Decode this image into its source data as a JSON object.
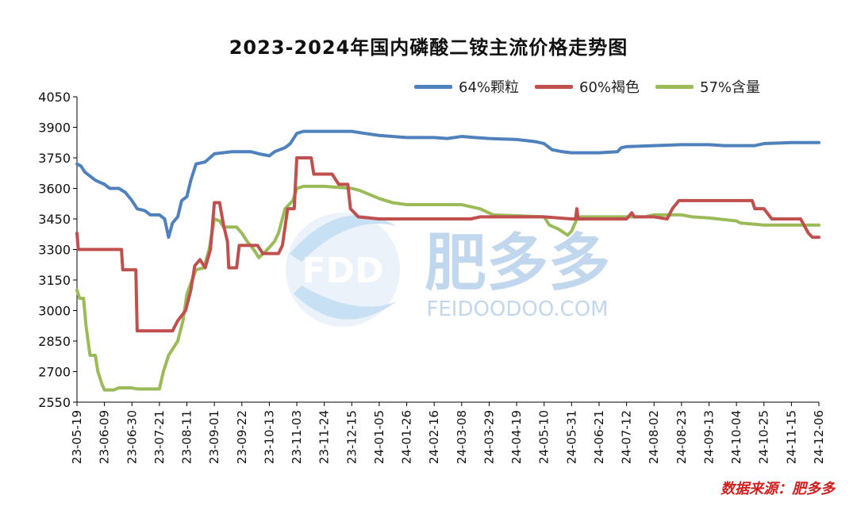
{
  "colors": {
    "series_64": "#4F81BD",
    "series_60": "#C0504D",
    "series_57": "#9BBB59",
    "source": "#d21e1e",
    "watermark": "#7fb2df"
  },
  "watermark": {
    "logo_text": "FDD",
    "brand": "肥多多",
    "url": "FEIDOODOO.COM"
  },
  "source_note": "数据来源：肥多多",
  "chart_data": {
    "type": "line",
    "title": "2023-2024年国内磷酸二铵主流价格走势图",
    "xlabel": "",
    "ylabel": "",
    "ylim": [
      2550,
      4050
    ],
    "yticks": [
      2550,
      2700,
      2850,
      3000,
      3150,
      3300,
      3450,
      3600,
      3750,
      3900,
      4050
    ],
    "x_start": "2023-05-19",
    "x_end": "2024-12-06",
    "x_tick_labels": [
      "23-05-19",
      "23-06-09",
      "23-06-30",
      "23-07-21",
      "23-08-11",
      "23-09-01",
      "23-09-22",
      "23-10-13",
      "23-11-03",
      "23-11-24",
      "23-12-15",
      "24-01-05",
      "24-01-26",
      "24-02-16",
      "24-03-08",
      "24-03-29",
      "24-04-19",
      "24-05-10",
      "24-05-31",
      "24-06-21",
      "24-07-12",
      "24-08-02",
      "24-08-23",
      "24-09-13",
      "24-10-04",
      "24-10-25",
      "24-11-15",
      "24-12-06"
    ],
    "legend_position": "top-right",
    "grid": false,
    "series": [
      {
        "name": "64%颗粒",
        "color": "#4F81BD",
        "points": [
          [
            "2023-05-19",
            3720
          ],
          [
            "2023-05-22",
            3710
          ],
          [
            "2023-05-25",
            3680
          ],
          [
            "2023-05-29",
            3660
          ],
          [
            "2023-06-02",
            3640
          ],
          [
            "2023-06-09",
            3620
          ],
          [
            "2023-06-13",
            3600
          ],
          [
            "2023-06-20",
            3600
          ],
          [
            "2023-06-25",
            3580
          ],
          [
            "2023-06-30",
            3540
          ],
          [
            "2023-07-04",
            3500
          ],
          [
            "2023-07-10",
            3490
          ],
          [
            "2023-07-14",
            3470
          ],
          [
            "2023-07-21",
            3470
          ],
          [
            "2023-07-25",
            3450
          ],
          [
            "2023-07-28",
            3360
          ],
          [
            "2023-07-31",
            3430
          ],
          [
            "2023-08-04",
            3460
          ],
          [
            "2023-08-07",
            3540
          ],
          [
            "2023-08-11",
            3560
          ],
          [
            "2023-08-14",
            3640
          ],
          [
            "2023-08-18",
            3720
          ],
          [
            "2023-08-25",
            3730
          ],
          [
            "2023-09-01",
            3770
          ],
          [
            "2023-09-14",
            3780
          ],
          [
            "2023-09-22",
            3780
          ],
          [
            "2023-09-29",
            3780
          ],
          [
            "2023-10-05",
            3770
          ],
          [
            "2023-10-13",
            3760
          ],
          [
            "2023-10-17",
            3780
          ],
          [
            "2023-10-25",
            3800
          ],
          [
            "2023-10-29",
            3820
          ],
          [
            "2023-11-03",
            3870
          ],
          [
            "2023-11-08",
            3880
          ],
          [
            "2023-11-24",
            3880
          ],
          [
            "2023-12-15",
            3880
          ],
          [
            "2023-12-25",
            3870
          ],
          [
            "2024-01-05",
            3860
          ],
          [
            "2024-01-15",
            3855
          ],
          [
            "2024-01-26",
            3850
          ],
          [
            "2024-02-16",
            3850
          ],
          [
            "2024-02-26",
            3845
          ],
          [
            "2024-03-08",
            3855
          ],
          [
            "2024-03-18",
            3850
          ],
          [
            "2024-03-29",
            3845
          ],
          [
            "2024-04-19",
            3840
          ],
          [
            "2024-05-03",
            3830
          ],
          [
            "2024-05-10",
            3820
          ],
          [
            "2024-05-16",
            3790
          ],
          [
            "2024-05-24",
            3780
          ],
          [
            "2024-05-31",
            3775
          ],
          [
            "2024-06-14",
            3775
          ],
          [
            "2024-06-21",
            3775
          ],
          [
            "2024-07-05",
            3780
          ],
          [
            "2024-07-08",
            3800
          ],
          [
            "2024-07-12",
            3805
          ],
          [
            "2024-08-02",
            3810
          ],
          [
            "2024-08-23",
            3815
          ],
          [
            "2024-09-13",
            3815
          ],
          [
            "2024-09-25",
            3810
          ],
          [
            "2024-10-04",
            3810
          ],
          [
            "2024-10-18",
            3810
          ],
          [
            "2024-10-25",
            3820
          ],
          [
            "2024-11-15",
            3825
          ],
          [
            "2024-11-25",
            3825
          ],
          [
            "2024-12-06",
            3825
          ]
        ]
      },
      {
        "name": "60%褐色",
        "color": "#C0504D",
        "points": [
          [
            "2023-05-19",
            3380
          ],
          [
            "2023-05-20",
            3300
          ],
          [
            "2023-06-09",
            3300
          ],
          [
            "2023-06-22",
            3300
          ],
          [
            "2023-06-23",
            3200
          ],
          [
            "2023-07-03",
            3200
          ],
          [
            "2023-07-04",
            2900
          ],
          [
            "2023-07-21",
            2900
          ],
          [
            "2023-07-31",
            2900
          ],
          [
            "2023-08-04",
            2950
          ],
          [
            "2023-08-10",
            3000
          ],
          [
            "2023-08-14",
            3100
          ],
          [
            "2023-08-17",
            3220
          ],
          [
            "2023-08-21",
            3250
          ],
          [
            "2023-08-25",
            3210
          ],
          [
            "2023-08-29",
            3300
          ],
          [
            "2023-09-01",
            3530
          ],
          [
            "2023-09-05",
            3530
          ],
          [
            "2023-09-08",
            3420
          ],
          [
            "2023-09-11",
            3340
          ],
          [
            "2023-09-12",
            3210
          ],
          [
            "2023-09-18",
            3210
          ],
          [
            "2023-09-20",
            3320
          ],
          [
            "2023-10-04",
            3320
          ],
          [
            "2023-10-08",
            3280
          ],
          [
            "2023-10-20",
            3280
          ],
          [
            "2023-10-23",
            3320
          ],
          [
            "2023-10-27",
            3500
          ],
          [
            "2023-11-01",
            3500
          ],
          [
            "2023-11-03",
            3750
          ],
          [
            "2023-11-14",
            3750
          ],
          [
            "2023-11-16",
            3670
          ],
          [
            "2023-11-30",
            3670
          ],
          [
            "2023-12-05",
            3620
          ],
          [
            "2023-12-12",
            3620
          ],
          [
            "2023-12-14",
            3500
          ],
          [
            "2023-12-20",
            3460
          ],
          [
            "2024-01-05",
            3450
          ],
          [
            "2024-03-15",
            3450
          ],
          [
            "2024-03-22",
            3460
          ],
          [
            "2024-05-10",
            3460
          ],
          [
            "2024-05-31",
            3450
          ],
          [
            "2024-06-03",
            3450
          ],
          [
            "2024-06-04",
            3500
          ],
          [
            "2024-06-05",
            3450
          ],
          [
            "2024-07-12",
            3450
          ],
          [
            "2024-07-16",
            3480
          ],
          [
            "2024-07-18",
            3460
          ],
          [
            "2024-08-02",
            3460
          ],
          [
            "2024-08-12",
            3450
          ],
          [
            "2024-08-16",
            3500
          ],
          [
            "2024-08-21",
            3540
          ],
          [
            "2024-09-13",
            3540
          ],
          [
            "2024-10-16",
            3540
          ],
          [
            "2024-10-18",
            3500
          ],
          [
            "2024-10-25",
            3500
          ],
          [
            "2024-10-31",
            3450
          ],
          [
            "2024-11-18",
            3450
          ],
          [
            "2024-11-22",
            3450
          ],
          [
            "2024-11-28",
            3380
          ],
          [
            "2024-12-01",
            3360
          ],
          [
            "2024-12-06",
            3360
          ]
        ]
      },
      {
        "name": "57%含量",
        "color": "#9BBB59",
        "points": [
          [
            "2023-05-19",
            3100
          ],
          [
            "2023-05-21",
            3060
          ],
          [
            "2023-05-24",
            3060
          ],
          [
            "2023-05-26",
            2920
          ],
          [
            "2023-05-29",
            2780
          ],
          [
            "2023-06-02",
            2780
          ],
          [
            "2023-06-04",
            2700
          ],
          [
            "2023-06-07",
            2640
          ],
          [
            "2023-06-09",
            2610
          ],
          [
            "2023-06-16",
            2610
          ],
          [
            "2023-06-20",
            2620
          ],
          [
            "2023-06-30",
            2620
          ],
          [
            "2023-07-04",
            2615
          ],
          [
            "2023-07-21",
            2615
          ],
          [
            "2023-07-24",
            2700
          ],
          [
            "2023-07-28",
            2780
          ],
          [
            "2023-08-04",
            2850
          ],
          [
            "2023-08-08",
            2950
          ],
          [
            "2023-08-11",
            3080
          ],
          [
            "2023-08-15",
            3150
          ],
          [
            "2023-08-18",
            3200
          ],
          [
            "2023-08-24",
            3210
          ],
          [
            "2023-08-28",
            3300
          ],
          [
            "2023-09-01",
            3450
          ],
          [
            "2023-09-05",
            3440
          ],
          [
            "2023-09-08",
            3410
          ],
          [
            "2023-09-18",
            3410
          ],
          [
            "2023-09-22",
            3380
          ],
          [
            "2023-09-26",
            3340
          ],
          [
            "2023-10-01",
            3300
          ],
          [
            "2023-10-05",
            3260
          ],
          [
            "2023-10-10",
            3290
          ],
          [
            "2023-10-13",
            3310
          ],
          [
            "2023-10-17",
            3340
          ],
          [
            "2023-10-20",
            3380
          ],
          [
            "2023-10-25",
            3500
          ],
          [
            "2023-10-31",
            3540
          ],
          [
            "2023-11-03",
            3600
          ],
          [
            "2023-11-08",
            3610
          ],
          [
            "2023-11-24",
            3610
          ],
          [
            "2023-12-15",
            3600
          ],
          [
            "2023-12-21",
            3590
          ],
          [
            "2024-01-05",
            3550
          ],
          [
            "2024-01-15",
            3530
          ],
          [
            "2024-01-26",
            3520
          ],
          [
            "2024-03-08",
            3520
          ],
          [
            "2024-03-22",
            3500
          ],
          [
            "2024-04-01",
            3470
          ],
          [
            "2024-05-10",
            3460
          ],
          [
            "2024-05-14",
            3420
          ],
          [
            "2024-05-21",
            3400
          ],
          [
            "2024-05-28",
            3370
          ],
          [
            "2024-05-31",
            3390
          ],
          [
            "2024-06-04",
            3450
          ],
          [
            "2024-06-07",
            3460
          ],
          [
            "2024-07-12",
            3460
          ],
          [
            "2024-07-26",
            3460
          ],
          [
            "2024-08-02",
            3470
          ],
          [
            "2024-08-23",
            3470
          ],
          [
            "2024-08-31",
            3460
          ],
          [
            "2024-09-13",
            3455
          ],
          [
            "2024-10-04",
            3440
          ],
          [
            "2024-10-07",
            3430
          ],
          [
            "2024-10-25",
            3420
          ],
          [
            "2024-11-15",
            3420
          ],
          [
            "2024-12-06",
            3420
          ]
        ]
      }
    ]
  }
}
